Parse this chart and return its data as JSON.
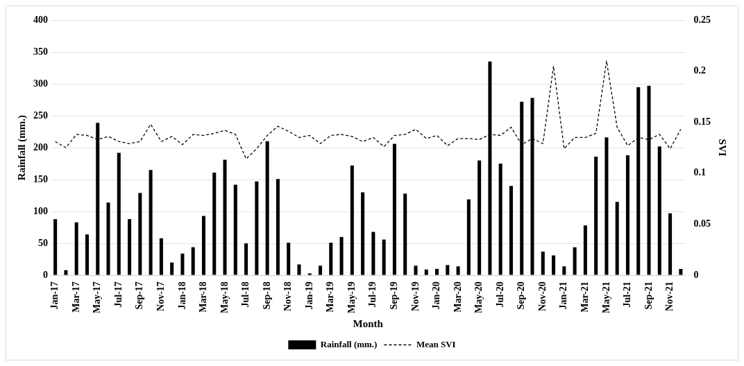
{
  "chart_data": {
    "type": "bar",
    "xlabel": "Month",
    "ylabel": "Rainfall (mm.)",
    "y2label": "SVI",
    "categories": [
      "Jan-17",
      null,
      "Mar-17",
      null,
      "May-17",
      null,
      "Jul-17",
      null,
      "Sep-17",
      null,
      "Nov-17",
      null,
      "Jan-18",
      null,
      "Mar-18",
      null,
      "May-18",
      null,
      "Jul-18",
      null,
      "Sep-18",
      null,
      "Nov-18",
      null,
      "Jan-19",
      null,
      "Mar-19",
      null,
      "May-19",
      null,
      "Jul-19",
      null,
      "Sep-19",
      null,
      "Nov-19",
      null,
      "Jan-20",
      null,
      "Mar-20",
      null,
      "May-20",
      null,
      "Jul-20",
      null,
      "Sep-20",
      null,
      "Nov-20",
      null,
      "Jan-21",
      null,
      "Mar-21",
      null,
      "May-21",
      null,
      "Jul-21",
      null,
      "Sep-21",
      null,
      "Nov-21",
      null
    ],
    "series": [
      {
        "name": "Rainfall (mm.)",
        "color": "#000000",
        "values": [
          88,
          8,
          83,
          64,
          239,
          114,
          192,
          88,
          129,
          165,
          58,
          20,
          34,
          44,
          93,
          161,
          181,
          142,
          50,
          147,
          210,
          151,
          51,
          17,
          3,
          15,
          51,
          60,
          172,
          130,
          68,
          56,
          206,
          128,
          15,
          9,
          10,
          16,
          14,
          119,
          180,
          335,
          175,
          140,
          272,
          278,
          37,
          31,
          14,
          44,
          78,
          186,
          216,
          115,
          188,
          295,
          297,
          202,
          97,
          10
        ]
      },
      {
        "name": "Mean SVI",
        "type": "line",
        "axis": "y2",
        "color": "#000000",
        "line_style": "dashed",
        "marker": "none",
        "values": [
          0.131,
          0.125,
          0.138,
          0.137,
          0.133,
          0.136,
          0.131,
          0.129,
          0.131,
          0.148,
          0.131,
          0.136,
          0.128,
          0.138,
          0.137,
          0.139,
          0.142,
          0.138,
          0.114,
          0.124,
          0.137,
          0.146,
          0.141,
          0.135,
          0.137,
          0.129,
          0.137,
          0.138,
          0.136,
          0.131,
          0.135,
          0.126,
          0.137,
          0.138,
          0.143,
          0.134,
          0.137,
          0.127,
          0.134,
          0.134,
          0.133,
          0.138,
          0.137,
          0.145,
          0.128,
          0.134,
          0.129,
          0.205,
          0.124,
          0.135,
          0.135,
          0.139,
          0.21,
          0.145,
          0.127,
          0.135,
          0.133,
          0.138,
          0.124,
          0.143
        ]
      }
    ],
    "ylim": [
      0,
      400
    ],
    "yticks": [
      0,
      50,
      100,
      150,
      200,
      250,
      300,
      350,
      400
    ],
    "y2lim": [
      0,
      0.25
    ],
    "y2ticks": [
      0,
      0.05,
      0.1,
      0.15,
      0.2,
      0.25
    ],
    "grid": "y",
    "legend": "bottom"
  }
}
